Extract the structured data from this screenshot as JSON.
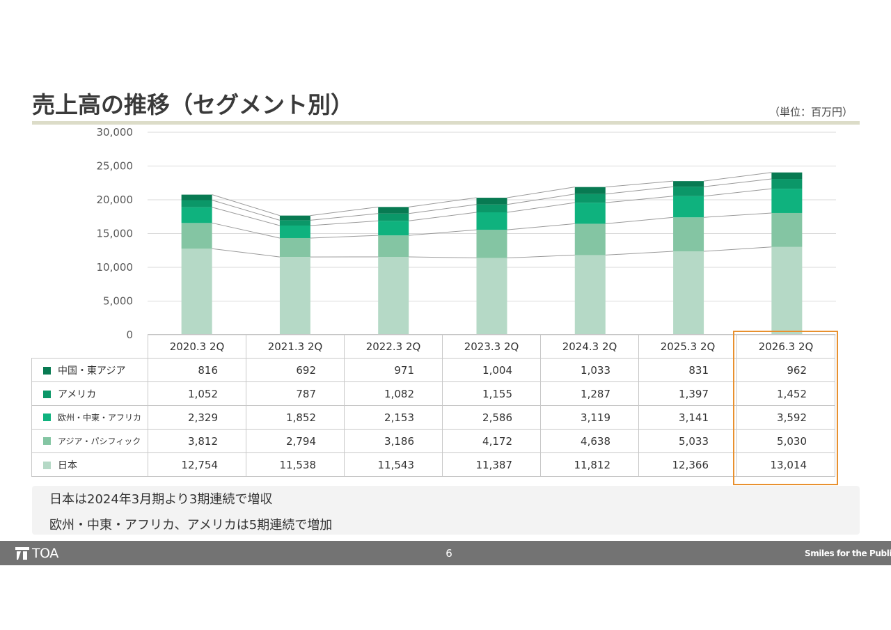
{
  "header": {
    "title": "売上高の推移（セグメント別）",
    "unit": "（単位：百万円）"
  },
  "chart_data": {
    "type": "bar",
    "stacked": true,
    "categories": [
      "2020.3 2Q",
      "2021.3 2Q",
      "2022.3 2Q",
      "2023.3 2Q",
      "2024.3 2Q",
      "2025.3 2Q",
      "2026.3 2Q"
    ],
    "series": [
      {
        "name": "日本",
        "color": "#b5d9c6",
        "values": [
          12754,
          11538,
          11543,
          11387,
          11812,
          12366,
          13014
        ]
      },
      {
        "name": "アジア・パシフィック",
        "color": "#84c5a3",
        "values": [
          3812,
          2794,
          3186,
          4172,
          4638,
          5033,
          5030
        ]
      },
      {
        "name": "欧州・中東・アフリカ",
        "color": "#0fb27e",
        "values": [
          2329,
          1852,
          2153,
          2586,
          3119,
          3141,
          3592
        ]
      },
      {
        "name": "アメリカ",
        "color": "#0b9768",
        "values": [
          1052,
          787,
          1082,
          1155,
          1287,
          1397,
          1452
        ]
      },
      {
        "name": "中国・東アジア",
        "color": "#087a52",
        "values": [
          816,
          692,
          971,
          1004,
          1033,
          831,
          962
        ]
      }
    ],
    "y_ticks": [
      "0",
      "5,000",
      "10,000",
      "15,000",
      "20,000",
      "25,000",
      "30,000"
    ],
    "ylim": [
      0,
      30000
    ],
    "grid": true,
    "table_row_order": [
      "中国・東アジア",
      "アメリカ",
      "欧州・中東・アフリカ",
      "アジア・パシフィック",
      "日本"
    ],
    "table_values": [
      [
        "816",
        "692",
        "971",
        "1,004",
        "1,033",
        "831",
        "962"
      ],
      [
        "1,052",
        "787",
        "1,082",
        "1,155",
        "1,287",
        "1,397",
        "1,452"
      ],
      [
        "2,329",
        "1,852",
        "2,153",
        "2,586",
        "3,119",
        "3,141",
        "3,592"
      ],
      [
        "3,812",
        "2,794",
        "3,186",
        "4,172",
        "4,638",
        "5,033",
        "5,030"
      ],
      [
        "12,754",
        "11,538",
        "11,543",
        "11,387",
        "11,812",
        "12,366",
        "13,014"
      ]
    ],
    "highlighted_category": "2026.3 2Q"
  },
  "notes": [
    "日本は2024年3月期より3期連続で増収",
    "欧州・中東・アフリカ、アメリカは5期連続で増加"
  ],
  "footer": {
    "logo": "TOA",
    "page_number": "6",
    "slogan": "Smiles for the Public"
  }
}
